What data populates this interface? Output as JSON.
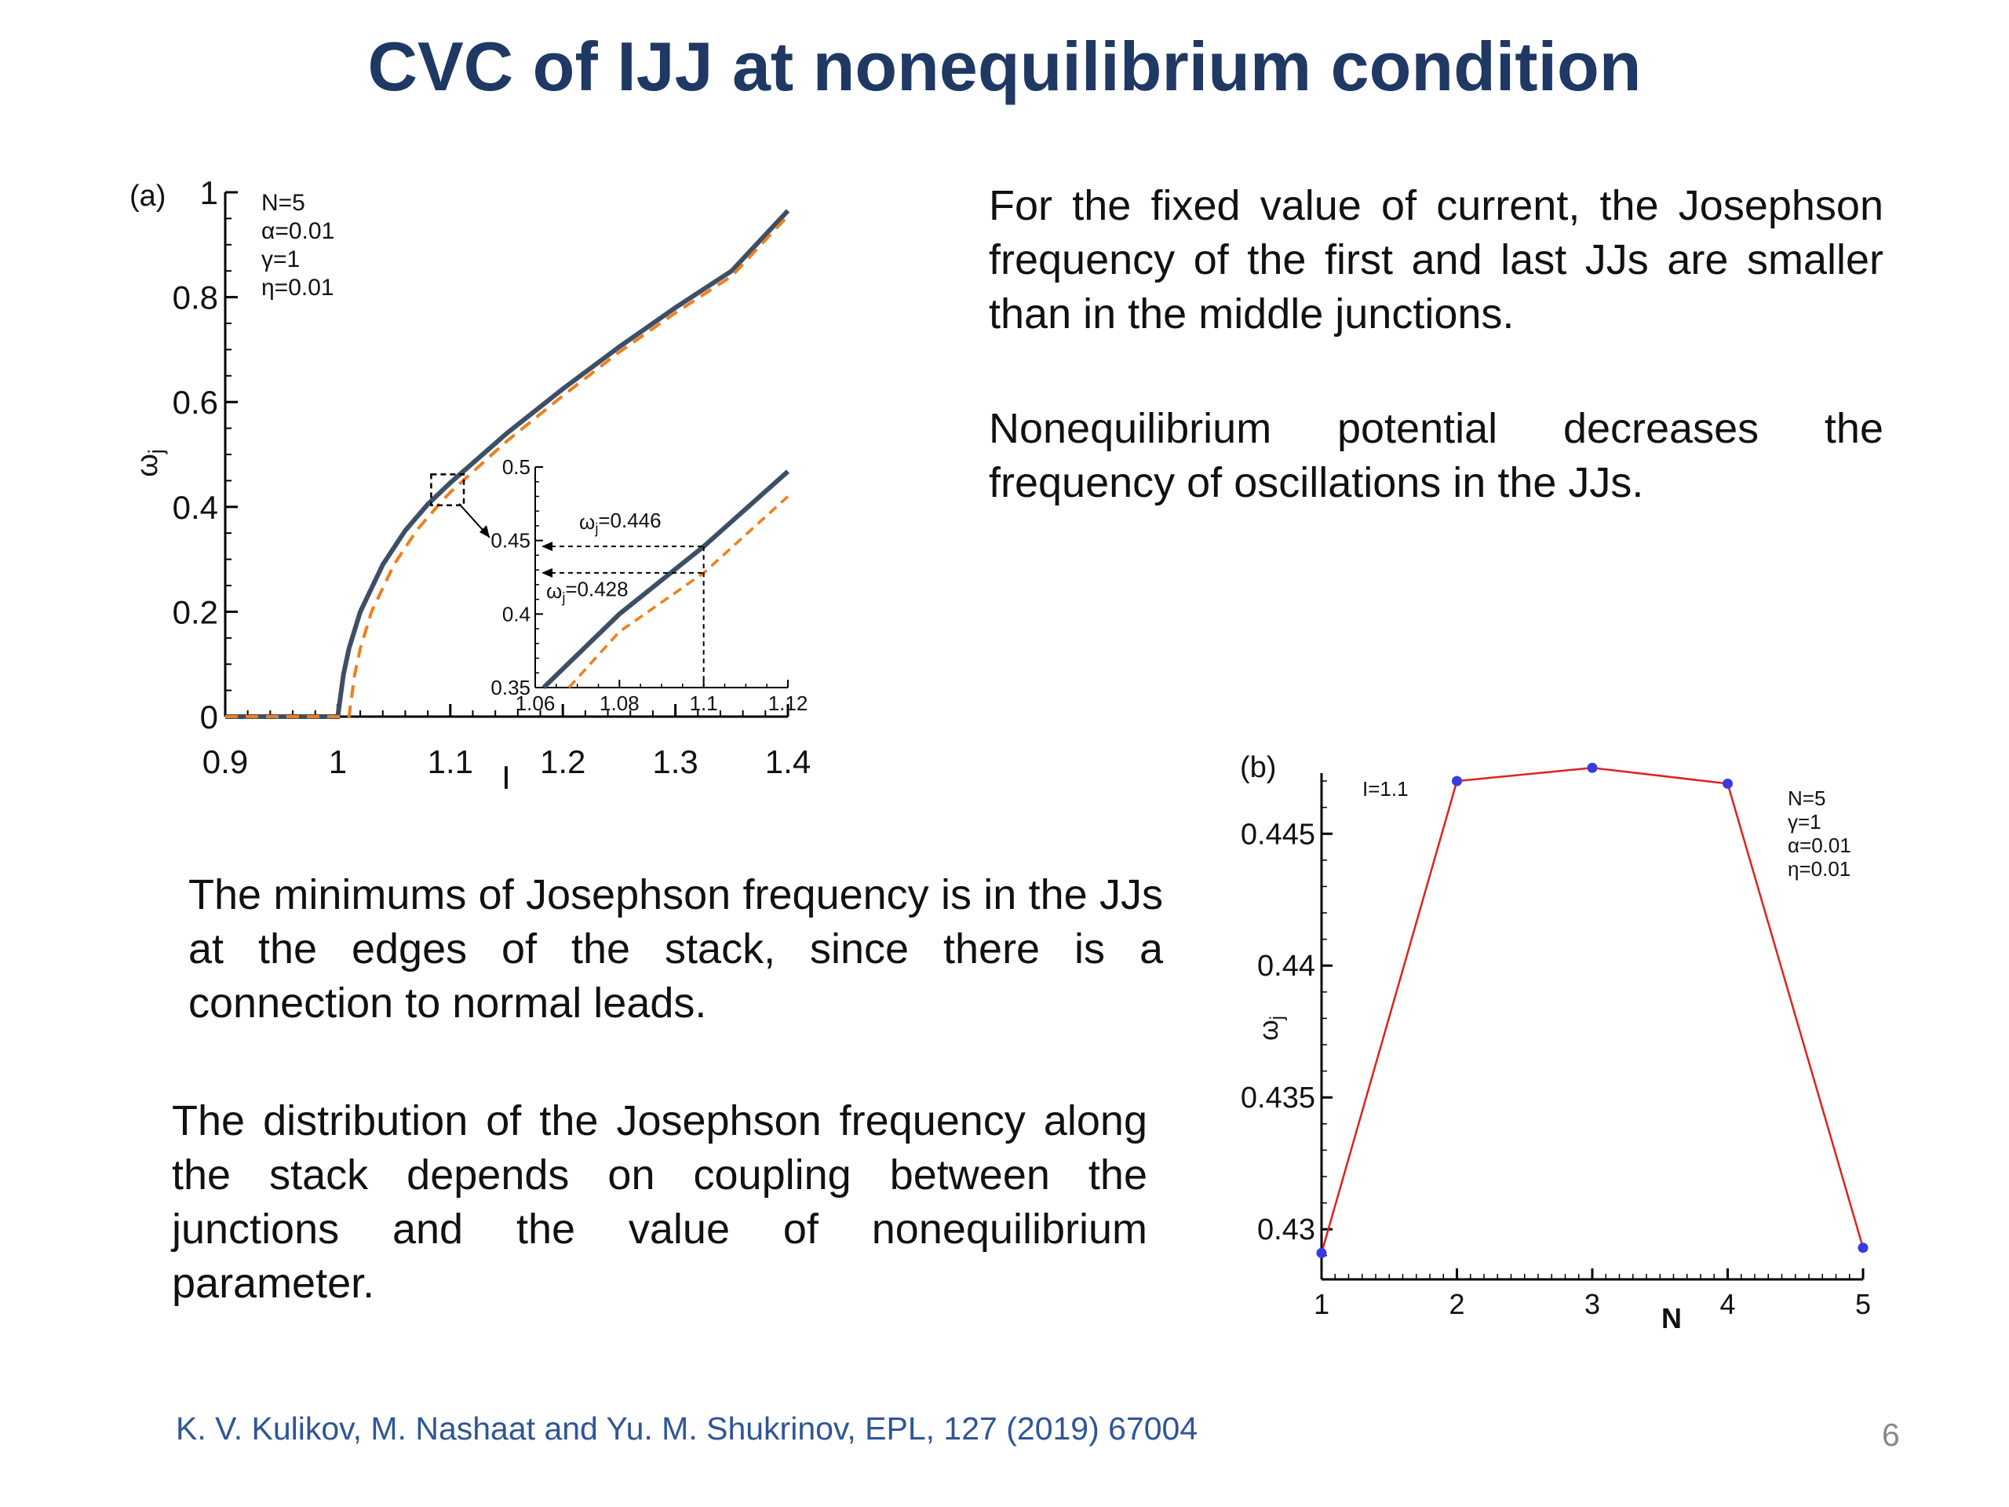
{
  "slide": {
    "title": "CVC of IJJ at nonequilibrium condition",
    "paragraphs": [
      "For the fixed value of current, the Josephson frequency of the first and last JJs are smaller than in the middle junctions.",
      "Nonequilibrium potential decreases the frequency of oscillations in the JJs.",
      "The minimums of Josephson frequency is in the JJs at the edges of the stack, since there is a connection to normal leads.",
      "The distribution of the Josephson frequency along the stack depends on coupling between the junctions and the value of nonequilibrium parameter."
    ],
    "reference": "K. V. Kulikov, M. Nashaat and Yu. M. Shukrinov, EPL, 127 (2019) 67004",
    "page_number": "6"
  },
  "chart_data": [
    {
      "type": "line",
      "panel": "(a)",
      "xlabel": "I",
      "ylabel": "ω_j",
      "xlim": [
        0.9,
        1.4
      ],
      "ylim": [
        0,
        1
      ],
      "x_ticks": [
        "0.9",
        "1",
        "1.1",
        "1.2",
        "1.3",
        "1.4"
      ],
      "y_ticks": [
        "0",
        "0.2",
        "0.4",
        "0.6",
        "0.8",
        "1"
      ],
      "parameters": [
        "N=5",
        "α=0.01",
        "γ=1",
        "η=0.01"
      ],
      "colors": {
        "solid": "#3d4f66",
        "dashed": "#f07f1a"
      },
      "series": [
        {
          "style": "solid",
          "x": [
            0.9,
            1.0,
            1.005,
            1.01,
            1.02,
            1.04,
            1.06,
            1.08,
            1.1,
            1.15,
            1.2,
            1.25,
            1.3,
            1.35,
            1.4
          ],
          "y": [
            0,
            0,
            0.08,
            0.13,
            0.2,
            0.29,
            0.355,
            0.405,
            0.446,
            0.54,
            0.625,
            0.705,
            0.78,
            0.85,
            0.965
          ]
        },
        {
          "style": "dashed",
          "x": [
            0.9,
            1.01,
            1.015,
            1.02,
            1.03,
            1.05,
            1.07,
            1.09,
            1.1,
            1.15,
            1.2,
            1.25,
            1.3,
            1.35,
            1.4
          ],
          "y": [
            0,
            0,
            0.08,
            0.13,
            0.2,
            0.29,
            0.355,
            0.405,
            0.428,
            0.525,
            0.612,
            0.695,
            0.77,
            0.84,
            0.955
          ]
        }
      ],
      "inset": {
        "xlim": [
          1.06,
          1.12
        ],
        "ylim": [
          0.35,
          0.5
        ],
        "x_ticks": [
          "1.06",
          "1.08",
          "1.1",
          "1.12"
        ],
        "y_ticks": [
          "0.35",
          "0.4",
          "0.45",
          "0.5"
        ],
        "annotations": [
          "ω_j=0.446",
          "ω_j=0.428"
        ],
        "series": [
          {
            "style": "solid",
            "x": [
              1.062,
              1.08,
              1.1,
              1.12
            ],
            "y": [
              0.35,
              0.4,
              0.446,
              0.497
            ]
          },
          {
            "style": "dashed",
            "x": [
              1.068,
              1.08,
              1.1,
              1.12
            ],
            "y": [
              0.35,
              0.388,
              0.428,
              0.48
            ]
          }
        ]
      }
    },
    {
      "type": "line",
      "panel": "(b)",
      "xlabel": "N",
      "ylabel": "ω_j",
      "xlim": [
        1,
        5
      ],
      "ylim": [
        0.4281,
        0.4473
      ],
      "x_ticks": [
        "1",
        "2",
        "3",
        "4",
        "5"
      ],
      "y_ticks": [
        "0.43",
        "0.435",
        "0.44",
        "0.445"
      ],
      "annotation": "I=1.1",
      "parameters": [
        "N=5",
        "γ=1",
        "α=0.01",
        "η=0.01"
      ],
      "colors": {
        "line": "#e02020",
        "marker": "#3a3ae0"
      },
      "series": [
        {
          "x": [
            1,
            2,
            3,
            4,
            5
          ],
          "y": [
            0.4291,
            0.447,
            0.4475,
            0.4469,
            0.4293
          ]
        }
      ]
    }
  ]
}
